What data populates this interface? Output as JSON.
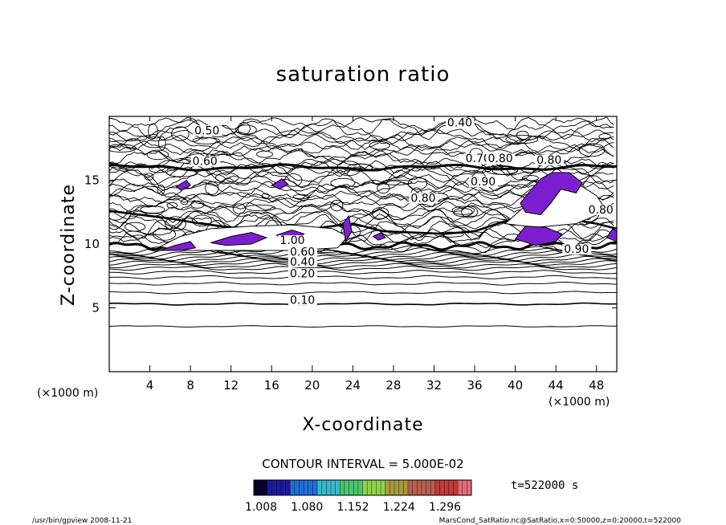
{
  "chart_data": {
    "type": "contour",
    "title": "saturation ratio",
    "xlabel": "X-coordinate",
    "ylabel": "Z-coordinate",
    "x_unit_label": "(×1000 m)",
    "y_unit_label": "(×1000 m)",
    "xlim": [
      0,
      50
    ],
    "ylim": [
      0,
      20
    ],
    "x_ticks": [
      "4",
      "8",
      "12",
      "16",
      "20",
      "24",
      "28",
      "32",
      "36",
      "40",
      "44",
      "48"
    ],
    "y_ticks": [
      "5",
      "10",
      "15"
    ],
    "contour_interval": "CONTOUR INTERVAL = 5.000E-02",
    "contour_labels": [
      {
        "text": "0.10",
        "x": 17.8,
        "z": 5.3
      },
      {
        "text": "0.20",
        "x": 17.8,
        "z": 7.4
      },
      {
        "text": "0.40",
        "x": 17.8,
        "z": 8.3
      },
      {
        "text": "0.60",
        "x": 17.8,
        "z": 9.1
      },
      {
        "text": "1.00",
        "x": 16.8,
        "z": 10.0
      },
      {
        "text": "0.50",
        "x": 8.4,
        "z": 18.6
      },
      {
        "text": "0.60",
        "x": 8.2,
        "z": 16.2
      },
      {
        "text": "0.40",
        "x": 33.3,
        "z": 19.2
      },
      {
        "text": "0.70",
        "x": 35.1,
        "z": 16.4
      },
      {
        "text": "0.80",
        "x": 37.3,
        "z": 16.4
      },
      {
        "text": "0.80",
        "x": 42.1,
        "z": 16.3
      },
      {
        "text": "0.90",
        "x": 35.6,
        "z": 14.6
      },
      {
        "text": "0.80",
        "x": 29.7,
        "z": 13.3
      },
      {
        "text": "0.80",
        "x": 47.2,
        "z": 12.4
      },
      {
        "text": "0.90",
        "x": 44.8,
        "z": 9.3
      }
    ],
    "supersaturated_regions_color": "#7d1fd1",
    "colorbar": {
      "ticks": [
        "1.008",
        "1.080",
        "1.152",
        "1.224",
        "1.296"
      ],
      "colors": [
        "#0a0030",
        "#1c1b9c",
        "#1e6fd8",
        "#39b9c8",
        "#4cc46a",
        "#8fd14a",
        "#a69a3f",
        "#b8604b",
        "#c13a3a",
        "#e26b7a"
      ]
    },
    "time_label": "t=522000 s",
    "footer_left": "/usr/bin/gpview   2008-11-21",
    "footer_right": "MarsCond_SatRatio.nc@SatRatio,x=0:50000,z=0:20000,t=522000"
  }
}
